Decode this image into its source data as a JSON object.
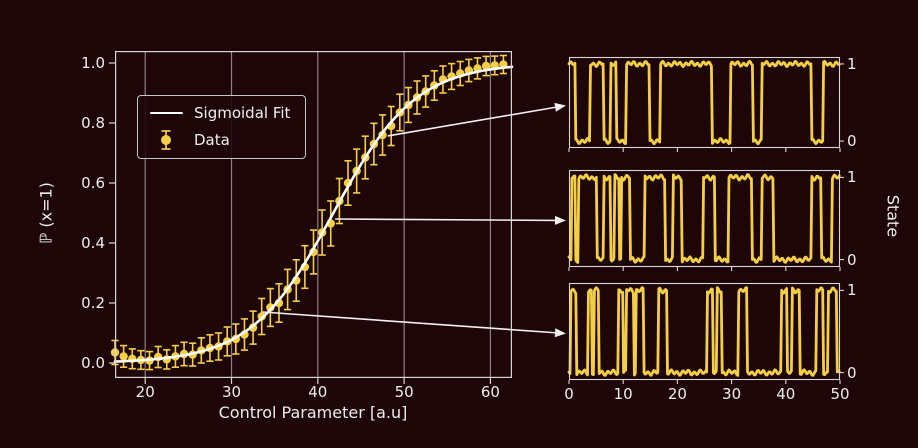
{
  "colors": {
    "background": "#1e0608",
    "trace": "#f3cf47",
    "fit_line": "#ffffff",
    "grid": "#8d8185",
    "spine": "#d8d4d4",
    "text": "#efeceb",
    "arrow": "#f2efef"
  },
  "chart_data": [
    {
      "type": "scatter",
      "title": "",
      "xlabel": "Control Parameter [a.u]",
      "ylabel": "ℙ (x=1)",
      "xlim": [
        16.5,
        62.5
      ],
      "ylim": [
        -0.05,
        1.04
      ],
      "x_ticks": [
        20,
        30,
        40,
        50,
        60
      ],
      "y_tick_values": [
        0,
        0.2,
        0.4,
        0.6,
        0.8,
        1.0
      ],
      "y_tick_labels": [
        "0.0",
        "0.2",
        "0.4",
        "0.6",
        "0.8",
        "1.0"
      ],
      "grid": "vertical-only",
      "legend": {
        "position": "upper left",
        "entries": [
          "Sigmoidal Fit",
          "Data"
        ]
      },
      "fit": {
        "model": "logistic",
        "amplitude": 1,
        "x0": 41.8,
        "k": 0.21
      },
      "points": {
        "x": [
          16.5,
          17.5,
          18.5,
          19.5,
          20.5,
          21.5,
          22.5,
          23.5,
          24.5,
          25.5,
          26.5,
          27.5,
          28.5,
          29.5,
          30.5,
          31.5,
          32.5,
          33.5,
          34.5,
          35.5,
          36.5,
          37.5,
          38.5,
          39.5,
          40.5,
          41.5,
          42.5,
          43.5,
          44.5,
          45.5,
          46.5,
          47.5,
          48.5,
          49.5,
          50.5,
          51.5,
          52.5,
          53.5,
          54.5,
          55.5,
          56.5,
          57.5,
          58.5,
          59.5,
          60.5,
          61.5
        ],
        "y": [
          0.035,
          0.022,
          0.014,
          0.01,
          0.008,
          0.02,
          0.012,
          0.022,
          0.03,
          0.028,
          0.042,
          0.05,
          0.055,
          0.072,
          0.08,
          0.095,
          0.118,
          0.155,
          0.185,
          0.2,
          0.245,
          0.275,
          0.32,
          0.37,
          0.435,
          0.465,
          0.54,
          0.6,
          0.64,
          0.685,
          0.73,
          0.76,
          0.79,
          0.835,
          0.86,
          0.885,
          0.905,
          0.925,
          0.945,
          0.955,
          0.965,
          0.975,
          0.982,
          0.99,
          0.992,
          0.995
        ],
        "yerr": [
          0.04,
          0.036,
          0.033,
          0.031,
          0.03,
          0.035,
          0.032,
          0.036,
          0.039,
          0.038,
          0.042,
          0.044,
          0.045,
          0.048,
          0.05,
          0.052,
          0.055,
          0.06,
          0.063,
          0.064,
          0.067,
          0.069,
          0.071,
          0.073,
          0.075,
          0.075,
          0.075,
          0.074,
          0.073,
          0.071,
          0.069,
          0.067,
          0.065,
          0.061,
          0.058,
          0.055,
          0.052,
          0.049,
          0.045,
          0.043,
          0.04,
          0.037,
          0.035,
          0.032,
          0.031,
          0.03
        ]
      },
      "annotations": {
        "arrows": [
          {
            "x": 48.1,
            "y": 0.757,
            "target_panel": 0
          },
          {
            "x": 42.0,
            "y": 0.48,
            "target_panel": 1
          },
          {
            "x": 33.6,
            "y": 0.17,
            "target_panel": 2
          }
        ]
      }
    },
    {
      "type": "line",
      "ylabel": "State",
      "xlim": [
        0,
        50
      ],
      "x_ticks": [
        0,
        10,
        20,
        30,
        40,
        50
      ],
      "y_ticks": [
        1,
        0
      ],
      "panels": [
        {
          "name": "high-probability-trace",
          "one_segments": [
            [
              0,
              1.1
            ],
            [
              3.9,
              6.3
            ],
            [
              7.6,
              8.8
            ],
            [
              10.6,
              14.9
            ],
            [
              16.8,
              26.3
            ],
            [
              29.7,
              34.0
            ],
            [
              35.6,
              44.8
            ],
            [
              46.9,
              50
            ]
          ]
        },
        {
          "name": "mid-probability-trace",
          "one_segments": [
            [
              0.4,
              1.1
            ],
            [
              1.7,
              5.2
            ],
            [
              6.3,
              7.6
            ],
            [
              8.4,
              9.2
            ],
            [
              9.7,
              11.3
            ],
            [
              14.0,
              17.7
            ],
            [
              19.2,
              20.8
            ],
            [
              24.8,
              26.9
            ],
            [
              29.4,
              33.7
            ],
            [
              35.5,
              37.7
            ],
            [
              44.8,
              46.6
            ],
            [
              48.5,
              50
            ]
          ]
        },
        {
          "name": "low-probability-trace",
          "one_segments": [
            [
              0.2,
              1.4
            ],
            [
              3.6,
              4.3
            ],
            [
              4.6,
              5.4
            ],
            [
              9.1,
              10.0
            ],
            [
              10.6,
              12.0
            ],
            [
              12.3,
              13.7
            ],
            [
              16.5,
              18.0
            ],
            [
              25.4,
              26.6
            ],
            [
              27.2,
              28.2
            ],
            [
              31.2,
              32.8
            ],
            [
              39.2,
              40.2
            ],
            [
              41.1,
              42.6
            ],
            [
              45.7,
              46.9
            ],
            [
              47.8,
              49.4
            ]
          ]
        }
      ]
    }
  ]
}
